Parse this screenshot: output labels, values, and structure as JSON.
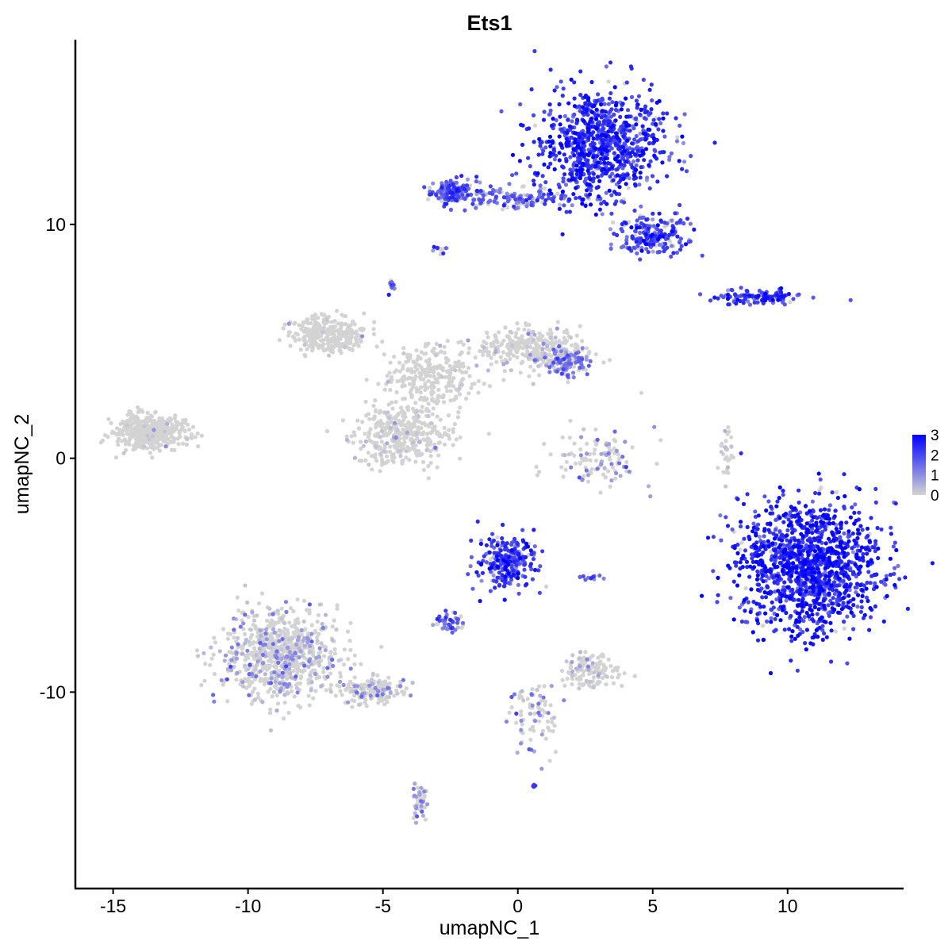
{
  "chart_data": {
    "type": "scatter",
    "title": "Ets1",
    "xlabel": "umapNC_1",
    "ylabel": "umapNC_2",
    "xlim": [
      -16.4,
      14.3
    ],
    "ylim": [
      -18.4,
      17.9
    ],
    "x_ticks": [
      -15,
      -10,
      -5,
      0,
      5,
      10
    ],
    "x_tick_labels": [
      "-15",
      "-10",
      "-5",
      "0",
      "5",
      "10"
    ],
    "y_ticks": [
      -10,
      0,
      10
    ],
    "y_tick_labels": [
      "-10",
      "0",
      "10"
    ],
    "grid": false,
    "legend": {
      "position": "right",
      "type": "colorbar",
      "min": 0,
      "max": 3,
      "ticks": [
        0,
        1,
        2,
        3
      ],
      "tick_labels": [
        "0",
        "1",
        "2",
        "3"
      ],
      "low_color": "#d3d3d3",
      "high_color": "#0000ff"
    },
    "color_variable": "Ets1 expression",
    "low_color": "#d3d3d3",
    "high_color": "#0000ff",
    "clusters": [
      {
        "id": "top-right-large",
        "center": [
          3.0,
          13.4
        ],
        "spread": [
          1.6,
          1.5
        ],
        "n": 900,
        "expr_mean": 2.2
      },
      {
        "id": "top-arm-left",
        "center": [
          -2.3,
          11.4
        ],
        "spread": [
          0.7,
          0.35
        ],
        "n": 160,
        "expr_mean": 1.8
      },
      {
        "id": "top-arm-bridge",
        "center": [
          0.2,
          11.1
        ],
        "spread": [
          1.4,
          0.3
        ],
        "n": 120,
        "expr_mean": 1.6
      },
      {
        "id": "top-lower-lobe",
        "center": [
          5.0,
          9.6
        ],
        "spread": [
          0.9,
          0.6
        ],
        "n": 200,
        "expr_mean": 2.0
      },
      {
        "id": "small-purple-9",
        "center": [
          -2.9,
          8.9
        ],
        "spread": [
          0.15,
          0.15
        ],
        "n": 12,
        "expr_mean": 1.7
      },
      {
        "id": "small-purple-7",
        "center": [
          -4.7,
          7.4
        ],
        "spread": [
          0.15,
          0.2
        ],
        "n": 12,
        "expr_mean": 1.3
      },
      {
        "id": "right-streak",
        "center": [
          8.8,
          6.9
        ],
        "spread": [
          1.1,
          0.2
        ],
        "n": 120,
        "expr_mean": 2.1
      },
      {
        "id": "central-left-lobe",
        "center": [
          -7.0,
          5.3
        ],
        "spread": [
          0.9,
          0.5
        ],
        "n": 300,
        "expr_mean": 0.05
      },
      {
        "id": "central-bridge",
        "center": [
          -3.2,
          3.4
        ],
        "spread": [
          1.1,
          1.0
        ],
        "n": 300,
        "expr_mean": 0.08
      },
      {
        "id": "central-right-lobe",
        "center": [
          0.5,
          4.7
        ],
        "spread": [
          1.3,
          0.6
        ],
        "n": 280,
        "expr_mean": 0.2
      },
      {
        "id": "central-right-tip",
        "center": [
          1.8,
          4.1
        ],
        "spread": [
          0.6,
          0.4
        ],
        "n": 140,
        "expr_mean": 1.2
      },
      {
        "id": "central-bottom-lobe",
        "center": [
          -4.3,
          1.0
        ],
        "spread": [
          1.2,
          0.8
        ],
        "n": 380,
        "expr_mean": 0.2
      },
      {
        "id": "far-left",
        "center": [
          -13.6,
          1.1
        ],
        "spread": [
          0.9,
          0.5
        ],
        "n": 420,
        "expr_mean": 0.03
      },
      {
        "id": "mid-small",
        "center": [
          3.0,
          -0.1
        ],
        "spread": [
          1.1,
          0.9
        ],
        "n": 120,
        "expr_mean": 0.8
      },
      {
        "id": "thin-line-right",
        "center": [
          7.7,
          0.2
        ],
        "spread": [
          0.15,
          0.9
        ],
        "n": 30,
        "expr_mean": 0.4
      },
      {
        "id": "bottom-right-large",
        "center": [
          10.8,
          -4.6
        ],
        "spread": [
          1.7,
          1.8
        ],
        "n": 1300,
        "expr_mean": 2.4
      },
      {
        "id": "mid-bottom-upper",
        "center": [
          -0.4,
          -4.4
        ],
        "spread": [
          0.7,
          0.8
        ],
        "n": 260,
        "expr_mean": 2.0
      },
      {
        "id": "mid-bottom-left",
        "center": [
          -2.6,
          -7.0
        ],
        "spread": [
          0.4,
          0.25
        ],
        "n": 50,
        "expr_mean": 1.6
      },
      {
        "id": "mid-bottom-small",
        "center": [
          2.8,
          -5.1
        ],
        "spread": [
          0.3,
          0.1
        ],
        "n": 12,
        "expr_mean": 1.6
      },
      {
        "id": "bottom-left-large",
        "center": [
          -8.8,
          -8.4
        ],
        "spread": [
          1.4,
          1.3
        ],
        "n": 800,
        "expr_mean": 0.6
      },
      {
        "id": "bottom-left-tail",
        "center": [
          -5.4,
          -9.9
        ],
        "spread": [
          0.8,
          0.4
        ],
        "n": 150,
        "expr_mean": 0.6
      },
      {
        "id": "bottom-mid-cluster",
        "center": [
          2.6,
          -9.1
        ],
        "spread": [
          0.7,
          0.5
        ],
        "n": 140,
        "expr_mean": 0.4
      },
      {
        "id": "bottom-strand",
        "center": [
          0.6,
          -11.0
        ],
        "spread": [
          0.6,
          1.0
        ],
        "n": 80,
        "expr_mean": 0.9
      },
      {
        "id": "bottom-tail-cluster",
        "center": [
          -3.6,
          -14.7
        ],
        "spread": [
          0.2,
          0.5
        ],
        "n": 50,
        "expr_mean": 0.8
      },
      {
        "id": "tiny-bottom",
        "center": [
          0.6,
          -14.0
        ],
        "spread": [
          0.05,
          0.05
        ],
        "n": 5,
        "expr_mean": 2.0
      }
    ]
  }
}
